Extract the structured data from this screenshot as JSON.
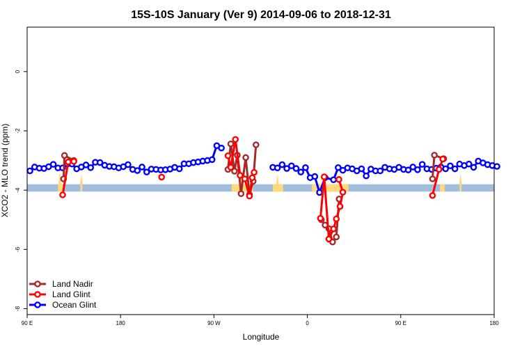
{
  "chart_data": {
    "type": "line",
    "title": "15S-10S January (Ver 9)   2014-09-06 to 2018-12-31",
    "xlabel": "Longitude",
    "ylabel": "XCO2 - MLO trend (ppm)",
    "xlim": [
      -90,
      410
    ],
    "ylim": [
      -8.2,
      1.5
    ],
    "x_ticks": [
      {
        "value": -90,
        "label": "90 E"
      },
      {
        "value": 10,
        "label": "180"
      },
      {
        "value": 110,
        "label": "90 W"
      },
      {
        "value": 210,
        "label": "0"
      },
      {
        "value": 310,
        "label": "90 E"
      },
      {
        "value": 410,
        "label": "180"
      }
    ],
    "y_ticks": [
      {
        "value": 0,
        "label": "0"
      },
      {
        "value": -2,
        "label": "-2"
      },
      {
        "value": -4,
        "label": "-4"
      },
      {
        "value": -6,
        "label": "-6"
      },
      {
        "value": -8,
        "label": "-8"
      }
    ],
    "legend_position": "bottom-left",
    "grid": false,
    "land_band": {
      "y_range": [
        -4.05,
        -3.8
      ],
      "ocean_color": "#A3BEDD",
      "land_color": "#FFD97A",
      "land_segments": [
        [
          -57,
          -52
        ],
        [
          -33,
          -31
        ],
        [
          129,
          152
        ],
        [
          173,
          184
        ],
        [
          215,
          254
        ],
        [
          352,
          357
        ],
        [
          373,
          375
        ]
      ],
      "land_spike_height": [
        [
          -55,
          0.45
        ],
        [
          -32,
          0.35
        ],
        [
          140,
          0.3
        ],
        [
          178,
          0.35
        ],
        [
          374,
          0.35
        ]
      ]
    },
    "series": [
      {
        "name": "Ocean Glint",
        "color": "#0000FF",
        "points": [
          [
            -87,
            -3.35
          ],
          [
            -82,
            -3.22
          ],
          [
            -77,
            -3.26
          ],
          [
            -72,
            -3.27
          ],
          [
            -67,
            -3.21
          ],
          [
            -62,
            -3.13
          ],
          [
            -57,
            -3.25
          ],
          [
            -52,
            -3.25
          ],
          [
            -47,
            -3.12
          ],
          [
            -42,
            -3.12
          ],
          [
            -37,
            -3.28
          ],
          [
            -32,
            -3.22
          ],
          [
            -27,
            -3.15
          ],
          [
            -22,
            -3.24
          ],
          [
            -17,
            -3.06
          ],
          [
            -12,
            -3.07
          ],
          [
            -7,
            -3.16
          ],
          [
            -2,
            -3.2
          ],
          [
            3,
            -3.21
          ],
          [
            8,
            -3.25
          ],
          [
            13,
            -3.21
          ],
          [
            18,
            -3.14
          ],
          [
            23,
            -3.3
          ],
          [
            28,
            -3.34
          ],
          [
            33,
            -3.22
          ],
          [
            38,
            -3.39
          ],
          [
            43,
            -3.29
          ],
          [
            48,
            -3.3
          ],
          [
            53,
            -3.32
          ],
          [
            58,
            -3.31
          ],
          [
            63,
            -3.29
          ],
          [
            68,
            -3.23
          ],
          [
            73,
            -3.28
          ],
          [
            78,
            -3.11
          ],
          [
            83,
            -3.11
          ],
          [
            88,
            -3.07
          ],
          [
            93,
            -3.05
          ],
          [
            98,
            -3.02
          ],
          [
            103,
            -3.0
          ],
          [
            108,
            -2.97
          ],
          [
            113,
            -2.5
          ],
          [
            118,
            -2.58
          ],
          [
            173,
            -3.23
          ],
          [
            178,
            -3.25
          ],
          [
            183,
            -3.14
          ],
          [
            188,
            -3.27
          ],
          [
            193,
            -3.18
          ],
          [
            198,
            -3.27
          ],
          [
            203,
            -3.39
          ],
          [
            208,
            -3.24
          ],
          [
            213,
            -3.58
          ],
          [
            218,
            -3.54
          ],
          [
            223,
            -4.08
          ],
          [
            229,
            -3.58
          ],
          [
            238,
            -3.65
          ],
          [
            243,
            -3.24
          ],
          [
            248,
            -3.33
          ],
          [
            253,
            -3.25
          ],
          [
            258,
            -3.28
          ],
          [
            263,
            -3.35
          ],
          [
            268,
            -3.28
          ],
          [
            273,
            -3.52
          ],
          [
            278,
            -3.29
          ],
          [
            283,
            -3.35
          ],
          [
            288,
            -3.35
          ],
          [
            293,
            -3.23
          ],
          [
            298,
            -3.28
          ],
          [
            303,
            -3.3
          ],
          [
            308,
            -3.23
          ],
          [
            313,
            -3.3
          ],
          [
            318,
            -3.32
          ],
          [
            323,
            -3.22
          ],
          [
            328,
            -3.31
          ],
          [
            333,
            -3.13
          ],
          [
            338,
            -3.28
          ],
          [
            343,
            -3.3
          ],
          [
            348,
            -3.26
          ],
          [
            353,
            -3.22
          ],
          [
            358,
            -3.28
          ],
          [
            363,
            -3.18
          ],
          [
            368,
            -3.28
          ],
          [
            373,
            -3.12
          ],
          [
            378,
            -3.17
          ],
          [
            383,
            -3.12
          ],
          [
            388,
            -3.23
          ],
          [
            393,
            -3.02
          ],
          [
            398,
            -3.08
          ],
          [
            403,
            -3.14
          ],
          [
            408,
            -3.17
          ],
          [
            413,
            -3.2
          ]
        ]
      },
      {
        "name": "Land Nadir",
        "color": "#A52A2A",
        "points": [
          [
            -51,
            -3.62
          ],
          [
            -50,
            -2.83
          ],
          [
            -40,
            -3.0
          ],
          [
            125,
            -3.3
          ],
          [
            128,
            -2.44
          ],
          [
            132,
            -3.36
          ],
          [
            135,
            -2.82
          ],
          [
            139,
            -4.12
          ],
          [
            144,
            -2.9
          ],
          [
            148,
            -4.15
          ],
          [
            152,
            -3.7
          ],
          [
            155,
            -2.47
          ],
          [
            225,
            -5.0
          ],
          [
            229,
            -5.18
          ],
          [
            233,
            -5.3
          ],
          [
            237,
            -5.75
          ],
          [
            241,
            -5.58
          ],
          [
            244,
            -4.3
          ],
          [
            344,
            -3.62
          ],
          [
            346,
            -2.82
          ],
          [
            356,
            -2.94
          ]
        ]
      },
      {
        "name": "Land Glint",
        "color": "#FF0000",
        "points": [
          [
            -52,
            -4.16
          ],
          [
            -46,
            -3.05
          ],
          [
            -40,
            -3.03
          ],
          [
            54,
            -3.56
          ],
          [
            125,
            -2.84
          ],
          [
            128,
            -3.23
          ],
          [
            133,
            -2.29
          ],
          [
            138,
            -3.5
          ],
          [
            143,
            -3.62
          ],
          [
            148,
            -4.2
          ],
          [
            151,
            -3.58
          ],
          [
            153,
            -3.4
          ],
          [
            224,
            -4.95
          ],
          [
            228,
            -3.55
          ],
          [
            233,
            -5.65
          ],
          [
            238,
            -5.31
          ],
          [
            241,
            -4.97
          ],
          [
            245,
            -4.55
          ],
          [
            248,
            -4.07
          ],
          [
            243.8,
            -3.64
          ],
          [
            344,
            -4.18
          ],
          [
            351,
            -3.3
          ],
          [
            355,
            -2.95
          ]
        ]
      }
    ]
  }
}
